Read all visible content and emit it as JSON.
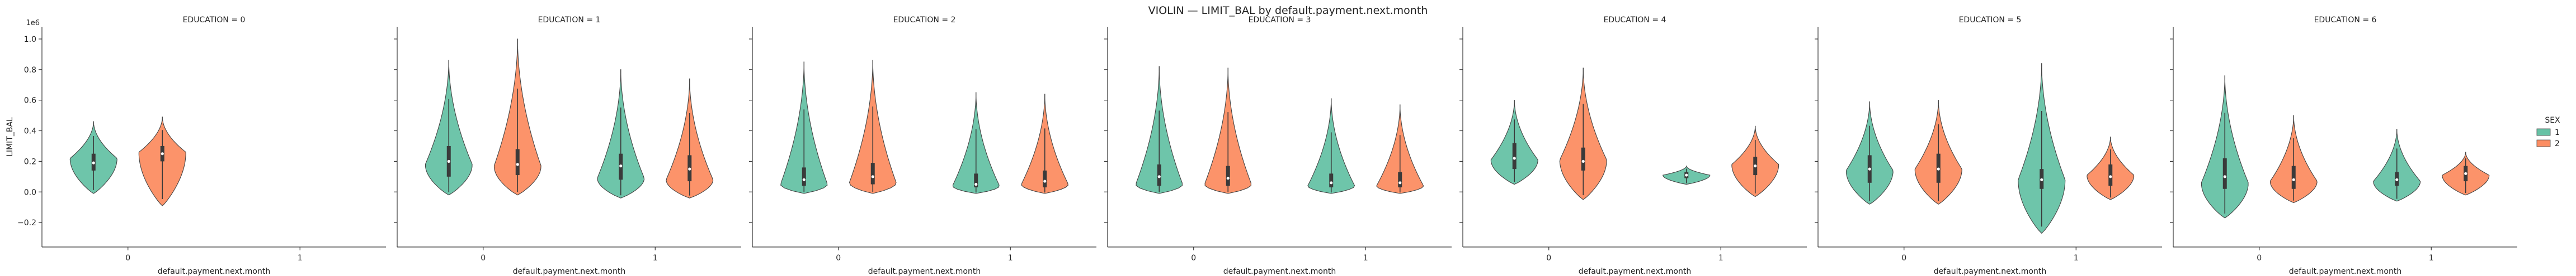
{
  "figure": {
    "title": "VIOLIN — LIMIT_BAL by default.payment.next.month"
  },
  "chart_data": {
    "type": "violin",
    "title": "VIOLIN — LIMIT_BAL by default.payment.next.month",
    "xlabel": "default.payment.next.month",
    "ylabel": "LIMIT_BAL",
    "y_scale_note": "1e6",
    "ylim": [
      -0.36,
      1.08
    ],
    "yticks": [
      -0.2,
      0.0,
      0.2,
      0.4,
      0.6,
      0.8,
      1.0
    ],
    "ytick_labels": [
      "−0.2",
      "0.0",
      "0.2",
      "0.4",
      "0.6",
      "0.8",
      "1.0"
    ],
    "categories": [
      "0",
      "1"
    ],
    "legend": {
      "title": "SEX",
      "placement": "right",
      "entries": [
        {
          "label": "1",
          "color": "#66c2a5"
        },
        {
          "label": "2",
          "color": "#fc8d62"
        }
      ]
    },
    "panels": [
      {
        "title": "EDUCATION = 0",
        "violins": [
          {
            "x": "0",
            "sex": "1",
            "min": -0.01,
            "q1": 0.14,
            "median": 0.19,
            "q3": 0.25,
            "max": 0.46,
            "peak": 0.22
          },
          {
            "x": "0",
            "sex": "2",
            "min": -0.09,
            "q1": 0.2,
            "median": 0.25,
            "q3": 0.3,
            "max": 0.49,
            "peak": 0.26
          }
        ]
      },
      {
        "title": "EDUCATION = 1",
        "violins": [
          {
            "x": "0",
            "sex": "1",
            "min": -0.02,
            "q1": 0.1,
            "median": 0.2,
            "q3": 0.3,
            "max": 0.86,
            "peak": 0.18
          },
          {
            "x": "0",
            "sex": "2",
            "min": -0.02,
            "q1": 0.11,
            "median": 0.18,
            "q3": 0.28,
            "max": 1.0,
            "peak": 0.17
          },
          {
            "x": "1",
            "sex": "1",
            "min": -0.04,
            "q1": 0.08,
            "median": 0.17,
            "q3": 0.25,
            "max": 0.8,
            "peak": 0.09
          },
          {
            "x": "1",
            "sex": "2",
            "min": -0.04,
            "q1": 0.07,
            "median": 0.15,
            "q3": 0.24,
            "max": 0.74,
            "peak": 0.08
          }
        ]
      },
      {
        "title": "EDUCATION = 2",
        "violins": [
          {
            "x": "0",
            "sex": "1",
            "min": -0.01,
            "q1": 0.04,
            "median": 0.08,
            "q3": 0.16,
            "max": 0.85,
            "peak": 0.05
          },
          {
            "x": "0",
            "sex": "2",
            "min": -0.01,
            "q1": 0.05,
            "median": 0.1,
            "q3": 0.19,
            "max": 0.86,
            "peak": 0.06
          },
          {
            "x": "1",
            "sex": "1",
            "min": -0.01,
            "q1": 0.03,
            "median": 0.05,
            "q3": 0.12,
            "max": 0.65,
            "peak": 0.04
          },
          {
            "x": "1",
            "sex": "2",
            "min": -0.01,
            "q1": 0.03,
            "median": 0.07,
            "q3": 0.14,
            "max": 0.64,
            "peak": 0.05
          }
        ]
      },
      {
        "title": "EDUCATION = 3",
        "violins": [
          {
            "x": "0",
            "sex": "1",
            "min": -0.01,
            "q1": 0.04,
            "median": 0.1,
            "q3": 0.18,
            "max": 0.82,
            "peak": 0.05
          },
          {
            "x": "0",
            "sex": "2",
            "min": -0.01,
            "q1": 0.04,
            "median": 0.09,
            "q3": 0.17,
            "max": 0.81,
            "peak": 0.05
          },
          {
            "x": "1",
            "sex": "1",
            "min": -0.01,
            "q1": 0.03,
            "median": 0.06,
            "q3": 0.12,
            "max": 0.61,
            "peak": 0.04
          },
          {
            "x": "1",
            "sex": "2",
            "min": -0.01,
            "q1": 0.03,
            "median": 0.06,
            "q3": 0.13,
            "max": 0.57,
            "peak": 0.04
          }
        ]
      },
      {
        "title": "EDUCATION = 4",
        "violins": [
          {
            "x": "0",
            "sex": "1",
            "min": 0.05,
            "q1": 0.15,
            "median": 0.22,
            "q3": 0.32,
            "max": 0.6,
            "peak": 0.21
          },
          {
            "x": "0",
            "sex": "2",
            "min": -0.05,
            "q1": 0.14,
            "median": 0.2,
            "q3": 0.29,
            "max": 0.81,
            "peak": 0.21
          },
          {
            "x": "1",
            "sex": "1",
            "min": 0.05,
            "q1": 0.09,
            "median": 0.11,
            "q3": 0.13,
            "max": 0.17,
            "peak": 0.11
          },
          {
            "x": "1",
            "sex": "2",
            "min": -0.03,
            "q1": 0.11,
            "median": 0.17,
            "q3": 0.23,
            "max": 0.43,
            "peak": 0.18
          }
        ]
      },
      {
        "title": "EDUCATION = 5",
        "violins": [
          {
            "x": "0",
            "sex": "1",
            "min": -0.08,
            "q1": 0.06,
            "median": 0.15,
            "q3": 0.24,
            "max": 0.59,
            "peak": 0.14
          },
          {
            "x": "0",
            "sex": "2",
            "min": -0.08,
            "q1": 0.06,
            "median": 0.15,
            "q3": 0.25,
            "max": 0.6,
            "peak": 0.15
          },
          {
            "x": "1",
            "sex": "1",
            "min": -0.27,
            "q1": 0.02,
            "median": 0.08,
            "q3": 0.15,
            "max": 0.84,
            "peak": 0.08
          },
          {
            "x": "1",
            "sex": "2",
            "min": -0.05,
            "q1": 0.04,
            "median": 0.1,
            "q3": 0.18,
            "max": 0.36,
            "peak": 0.11
          }
        ]
      },
      {
        "title": "EDUCATION = 6",
        "violins": [
          {
            "x": "0",
            "sex": "1",
            "min": -0.17,
            "q1": 0.02,
            "median": 0.1,
            "q3": 0.22,
            "max": 0.76,
            "peak": 0.06
          },
          {
            "x": "0",
            "sex": "2",
            "min": -0.07,
            "q1": 0.02,
            "median": 0.08,
            "q3": 0.17,
            "max": 0.5,
            "peak": 0.07
          },
          {
            "x": "1",
            "sex": "1",
            "min": -0.06,
            "q1": 0.04,
            "median": 0.08,
            "q3": 0.13,
            "max": 0.41,
            "peak": 0.07
          },
          {
            "x": "1",
            "sex": "2",
            "min": -0.02,
            "q1": 0.07,
            "median": 0.12,
            "q3": 0.17,
            "max": 0.26,
            "peak": 0.11
          }
        ]
      }
    ]
  }
}
